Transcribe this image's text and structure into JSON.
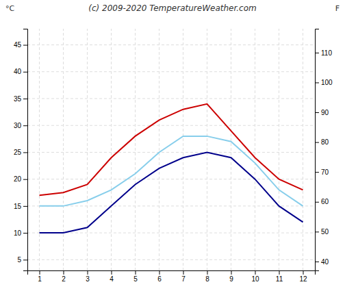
{
  "chart_data": {
    "type": "line",
    "title": "(c) 2009-2020 TemperatureWeather.com",
    "ylabel": "°C",
    "y2label": "F",
    "x": [
      1,
      2,
      3,
      4,
      5,
      6,
      7,
      8,
      9,
      10,
      11,
      12
    ],
    "series": [
      {
        "color": "#cc0000",
        "values": [
          17,
          17.5,
          19,
          24,
          28,
          31,
          33,
          34,
          29,
          24,
          20,
          18
        ]
      },
      {
        "color": "#87ceeb",
        "values": [
          15,
          15,
          16,
          18,
          21,
          25,
          28,
          28,
          27,
          23,
          18,
          15
        ]
      },
      {
        "color": "#00008b",
        "values": [
          10,
          10,
          11,
          15,
          19,
          22,
          24,
          25,
          24,
          20,
          15,
          12
        ]
      }
    ],
    "xlim": [
      0.5,
      12.5
    ],
    "xticks": [
      1,
      2,
      3,
      4,
      5,
      6,
      7,
      8,
      9,
      10,
      11,
      12
    ],
    "ylim": [
      3,
      48
    ],
    "yticks": [
      5,
      10,
      15,
      20,
      25,
      30,
      35,
      40,
      45
    ],
    "y2lim": [
      37,
      118
    ],
    "y2ticks": [
      40,
      50,
      60,
      70,
      80,
      90,
      100,
      110
    ],
    "grid": true
  }
}
